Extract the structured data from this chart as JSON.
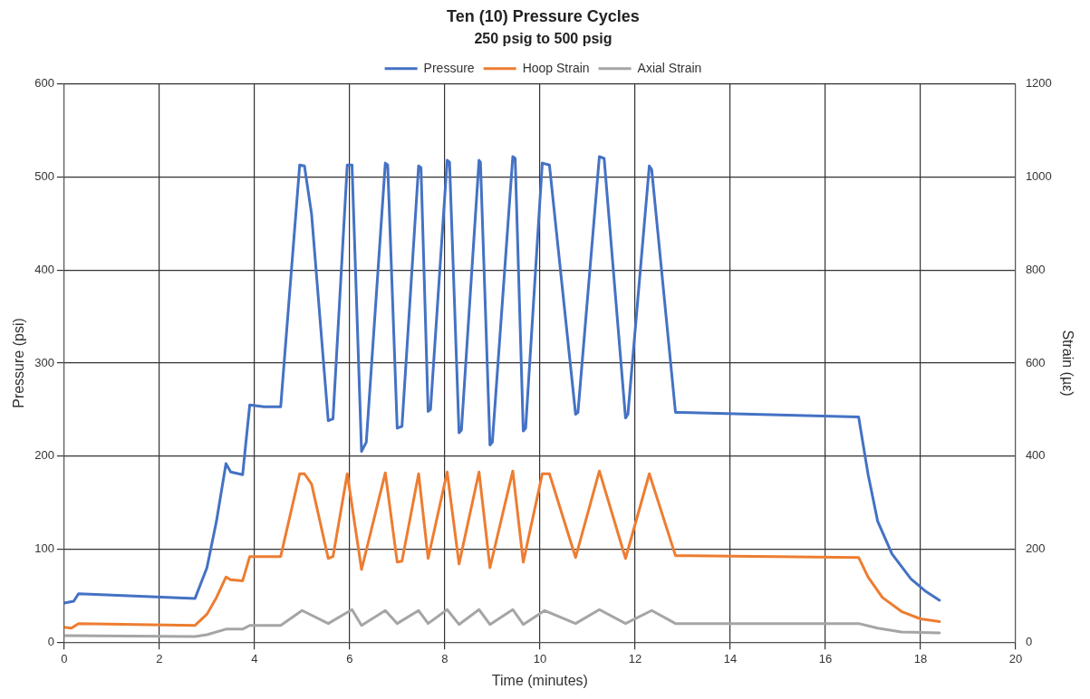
{
  "chart_data": {
    "type": "line",
    "title": "Ten (10) Pressure Cycles",
    "subtitle": "250 psig to 500 psig",
    "xlabel": "Time (minutes)",
    "ylabel": "Pressure (psi)",
    "y2label": "Strain (µε)",
    "xlim": [
      0,
      20
    ],
    "xticks": [
      0,
      2,
      4,
      6,
      8,
      10,
      12,
      14,
      16,
      18,
      20
    ],
    "ylim": [
      0,
      600
    ],
    "yticks": [
      0,
      100,
      200,
      300,
      400,
      500,
      600
    ],
    "y2lim": [
      0,
      1200
    ],
    "y2ticks": [
      0,
      200,
      400,
      600,
      800,
      1000,
      1200
    ],
    "grid": true,
    "legend": "top",
    "marker": "none",
    "line_style": "solid",
    "series": [
      {
        "name": "Pressure",
        "color": "#4472c4",
        "x": [
          0,
          0.2,
          0.3,
          2.75,
          3.0,
          3.2,
          3.4,
          3.5,
          3.75,
          3.9,
          4.2,
          4.55,
          4.95,
          5.05,
          5.2,
          5.55,
          5.65,
          5.95,
          6.05,
          6.25,
          6.35,
          6.75,
          6.8,
          7.0,
          7.1,
          7.45,
          7.5,
          7.65,
          7.7,
          8.05,
          8.1,
          8.3,
          8.35,
          8.72,
          8.75,
          8.95,
          9.0,
          9.43,
          9.48,
          9.65,
          9.7,
          10.05,
          10.2,
          10.75,
          10.8,
          11.25,
          11.35,
          11.8,
          11.85,
          12.3,
          12.35,
          12.85,
          12.9,
          16.7,
          16.9,
          17.1,
          17.4,
          17.8,
          18.1,
          18.4
        ],
        "values": [
          42,
          44,
          52,
          47,
          80,
          130,
          192,
          183,
          180,
          255,
          253,
          253,
          513,
          512,
          460,
          238,
          240,
          513,
          513,
          205,
          215,
          515,
          513,
          230,
          232,
          512,
          510,
          248,
          250,
          518,
          516,
          225,
          228,
          518,
          516,
          212,
          215,
          522,
          520,
          227,
          230,
          515,
          513,
          245,
          247,
          522,
          520,
          241,
          245,
          512,
          508,
          247,
          247,
          242,
          180,
          130,
          95,
          68,
          55,
          45
        ]
      },
      {
        "name": "Hoop Strain",
        "color": "#ed7d31",
        "axis": "y2",
        "x": [
          0,
          0.15,
          0.3,
          2.75,
          3.0,
          3.2,
          3.4,
          3.5,
          3.75,
          3.9,
          4.55,
          4.95,
          5.05,
          5.2,
          5.55,
          5.65,
          5.95,
          6.25,
          6.75,
          7.0,
          7.1,
          7.45,
          7.65,
          8.05,
          8.3,
          8.72,
          8.95,
          9.43,
          9.65,
          10.05,
          10.2,
          10.75,
          11.25,
          11.8,
          12.3,
          12.85,
          16.7,
          16.9,
          17.2,
          17.6,
          18.0,
          18.4
        ],
        "values": [
          32,
          30,
          40,
          36,
          60,
          96,
          140,
          134,
          132,
          184,
          184,
          362,
          362,
          340,
          180,
          184,
          362,
          156,
          364,
          172,
          174,
          362,
          180,
          366,
          168,
          366,
          160,
          368,
          172,
          362,
          362,
          182,
          368,
          180,
          362,
          186,
          182,
          140,
          96,
          66,
          50,
          44
        ]
      },
      {
        "name": "Axial Strain",
        "color": "#a5a5a5",
        "axis": "y2",
        "x": [
          0,
          2.75,
          3.0,
          3.4,
          3.75,
          3.9,
          4.55,
          5.0,
          5.55,
          6.05,
          6.25,
          6.75,
          7.0,
          7.45,
          7.65,
          8.05,
          8.3,
          8.72,
          8.95,
          9.43,
          9.65,
          10.1,
          10.75,
          11.25,
          11.8,
          12.35,
          12.85,
          16.7,
          17.1,
          17.6,
          18.4
        ],
        "values": [
          14,
          12,
          16,
          28,
          28,
          36,
          36,
          68,
          40,
          70,
          36,
          68,
          40,
          68,
          40,
          70,
          38,
          70,
          38,
          70,
          38,
          68,
          40,
          70,
          40,
          68,
          40,
          40,
          30,
          22,
          20
        ]
      }
    ]
  }
}
